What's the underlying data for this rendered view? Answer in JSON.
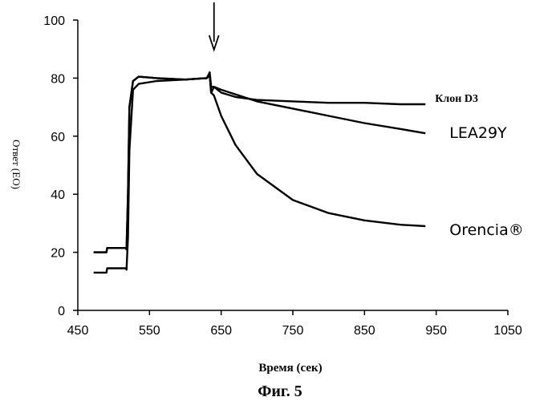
{
  "chart_data": {
    "type": "line",
    "title": "",
    "caption": "Фиг. 5",
    "xlabel": "Время (сек)",
    "ylabel": "Ответ (ЕО)",
    "xlim": [
      450,
      1050
    ],
    "ylim": [
      0,
      100
    ],
    "x_ticks": [
      450,
      550,
      650,
      750,
      850,
      950,
      1050
    ],
    "y_ticks": [
      0,
      20,
      40,
      60,
      80,
      100
    ],
    "annotation": {
      "type": "arrow",
      "x": 640,
      "label": ""
    },
    "series": [
      {
        "name": "Клон D3",
        "label_style": "serif",
        "x": [
          472,
          490,
          491,
          517,
          518,
          520,
          522,
          527,
          535,
          560,
          600,
          630,
          634,
          636,
          640,
          650,
          670,
          700,
          750,
          800,
          850,
          900,
          935
        ],
        "y": [
          13,
          13,
          14.5,
          14.5,
          14,
          25,
          55,
          76,
          78,
          79,
          79.5,
          80,
          82,
          77,
          77,
          75,
          73.5,
          72.5,
          72,
          71.5,
          71.5,
          71,
          71
        ]
      },
      {
        "name": "LEA29Y",
        "label_style": "sans",
        "x": [
          472,
          490,
          491,
          517,
          518,
          520,
          522,
          527,
          535,
          560,
          600,
          630,
          634,
          636,
          640,
          650,
          700,
          750,
          800,
          850,
          900,
          935
        ],
        "y": [
          20,
          20,
          21.5,
          21.5,
          21,
          40,
          70,
          79,
          80.5,
          80,
          79.5,
          80,
          81,
          75,
          77,
          76,
          72,
          69.5,
          67,
          64.5,
          62.5,
          61
        ]
      },
      {
        "name": "Orencia®",
        "label_style": "sans",
        "x": [
          472,
          490,
          491,
          517,
          518,
          520,
          522,
          527,
          535,
          560,
          600,
          630,
          634,
          636,
          640,
          650,
          670,
          700,
          750,
          800,
          850,
          900,
          935
        ],
        "y": [
          20,
          20,
          21.5,
          21.5,
          21,
          40,
          70,
          79,
          80.5,
          80,
          79.5,
          80,
          81,
          75,
          74,
          67,
          57,
          47,
          38,
          33.5,
          31,
          29.5,
          29
        ]
      }
    ]
  }
}
